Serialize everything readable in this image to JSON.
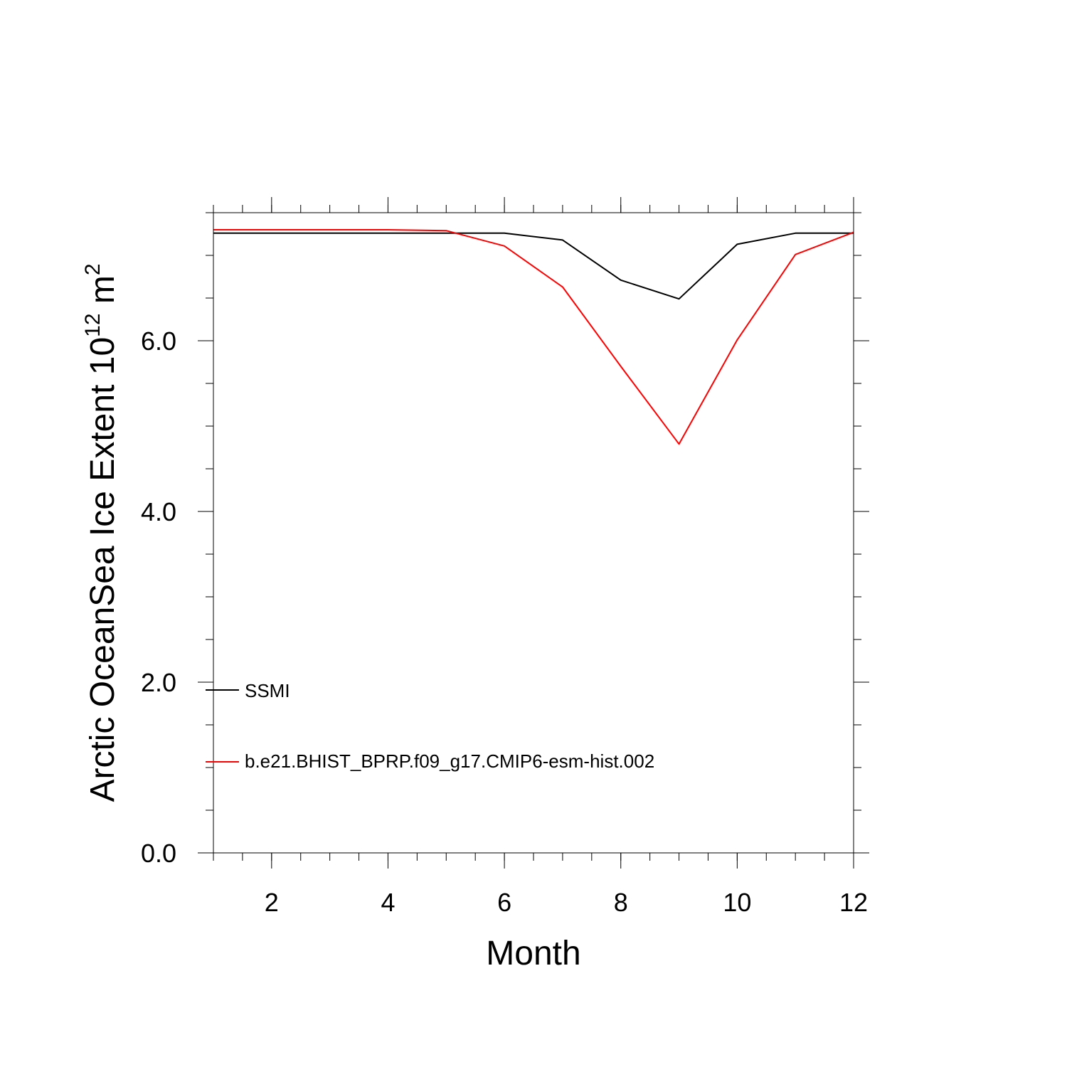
{
  "chart_data": {
    "type": "line",
    "title": "",
    "xlabel": "Month",
    "ylabel_main": "Arctic OceanSea Ice Extent 10",
    "ylabel_exp": "12",
    "ylabel_unit": " m",
    "ylabel_unit_exp": "2",
    "xlim": [
      1,
      12
    ],
    "ylim": [
      0,
      7.5
    ],
    "x_ticks": [
      2,
      4,
      6,
      8,
      10,
      12
    ],
    "y_ticks": [
      0,
      2,
      4,
      6
    ],
    "x_tick_labels": [
      "2",
      "4",
      "6",
      "8",
      "10",
      "12"
    ],
    "y_tick_labels": [
      "0.0",
      "2.0",
      "4.0",
      "6.0"
    ],
    "grid": false,
    "legend_position": "lower-left",
    "x": [
      1,
      2,
      3,
      4,
      5,
      6,
      7,
      8,
      9,
      10,
      11,
      12
    ],
    "series": [
      {
        "name": "SSMI",
        "color": "#000000",
        "values": [
          7.26,
          7.26,
          7.26,
          7.26,
          7.26,
          7.26,
          7.18,
          6.71,
          6.49,
          7.13,
          7.26,
          7.26
        ]
      },
      {
        "name": "b.e21.BHIST_BPRP.f09_g17.CMIP6-esm-hist.002",
        "color": "#ff0000",
        "values": [
          7.3,
          7.3,
          7.3,
          7.3,
          7.29,
          7.11,
          6.63,
          5.7,
          4.79,
          6.01,
          7.01,
          7.27
        ]
      }
    ]
  }
}
